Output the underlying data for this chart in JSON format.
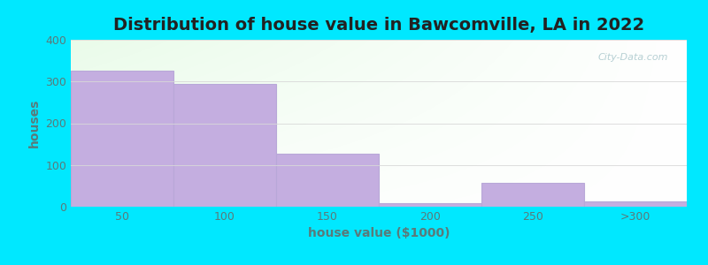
{
  "title": "Distribution of house value in Bawcomville, LA in 2022",
  "xlabel": "house value ($1000)",
  "ylabel": "houses",
  "categories": [
    "50",
    "100",
    "150",
    "200",
    "250",
    ">300"
  ],
  "values": [
    325,
    295,
    128,
    8,
    58,
    13
  ],
  "bar_color": "#c4aee0",
  "bar_edgecolor": "#b8a8d8",
  "ylim": [
    0,
    400
  ],
  "yticks": [
    0,
    100,
    200,
    300,
    400
  ],
  "outer_bg_color": "#00e8ff",
  "watermark": "City-Data.com",
  "title_fontsize": 14,
  "axis_label_fontsize": 10,
  "tick_fontsize": 9,
  "label_color": "#5a7a7a"
}
